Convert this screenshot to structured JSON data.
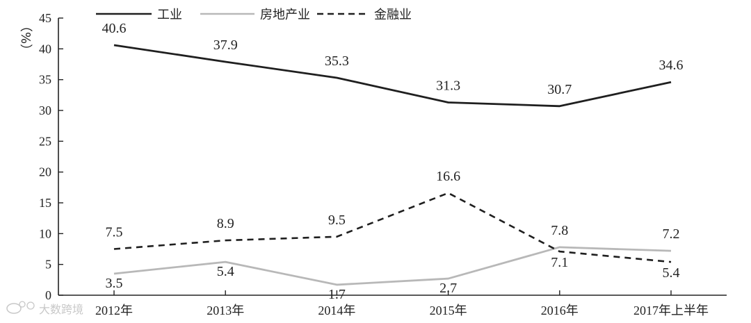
{
  "chart_data": {
    "type": "line",
    "categories": [
      "2012年",
      "2013年",
      "2014年",
      "2015年",
      "2016年",
      "2017年上半年"
    ],
    "ylabel": "（%）",
    "ylim": [
      0,
      45
    ],
    "yticks": [
      0,
      5,
      10,
      15,
      20,
      25,
      30,
      35,
      40,
      45
    ],
    "grid": false,
    "legend_position": "top-left",
    "series": [
      {
        "name": "工业",
        "values": [
          40.6,
          37.9,
          35.3,
          31.3,
          30.7,
          34.6
        ],
        "color": "#1f1f1f",
        "dash": "solid",
        "labels": [
          "40.6",
          "37.9",
          "35.3",
          "31.3",
          "30.7",
          "34.6"
        ]
      },
      {
        "name": "房地产业",
        "values": [
          3.5,
          5.4,
          1.7,
          2.7,
          7.8,
          7.2
        ],
        "color": "#b8b8b8",
        "dash": "solid",
        "labels": [
          "3.5",
          "5.4",
          "1.7",
          "2.7",
          "7.8",
          "7.2"
        ]
      },
      {
        "name": "金融业",
        "values": [
          7.5,
          8.9,
          9.5,
          16.6,
          7.1,
          5.4
        ],
        "color": "#1f1f1f",
        "dash": "dashed",
        "labels": [
          "7.5",
          "8.9",
          "9.5",
          "16.6",
          "7.1",
          "5.4"
        ]
      }
    ]
  },
  "watermark": {
    "text": "大数跨境",
    "icon": "weibo-logo-icon"
  }
}
